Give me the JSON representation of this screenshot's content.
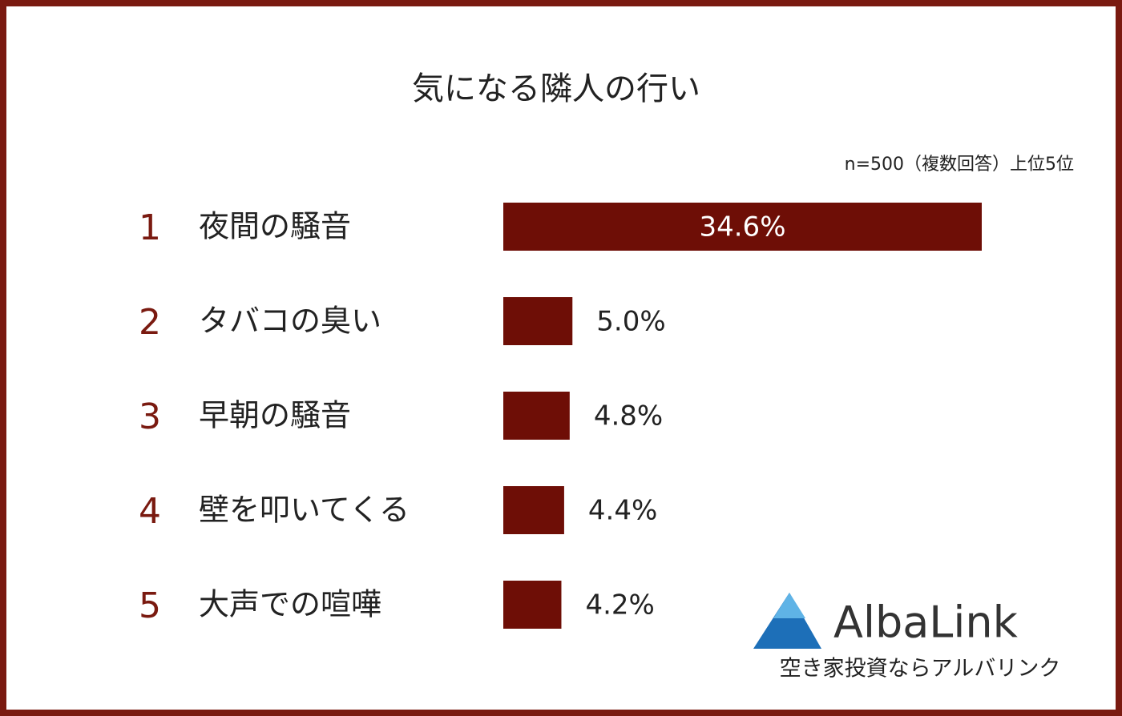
{
  "chart_data": {
    "type": "bar",
    "title": "気になる隣人の行い",
    "subtitle": "n=500（複数回答）上位5位",
    "ranks": [
      1,
      2,
      3,
      4,
      5
    ],
    "categories": [
      "夜間の騒音",
      "タバコの臭い",
      "早朝の騒音",
      "壁を叩いてくる",
      "大声での喧嘩"
    ],
    "values": [
      34.6,
      5.0,
      4.8,
      4.4,
      4.2
    ],
    "value_labels": [
      "34.6%",
      "5.0%",
      "4.8%",
      "4.4%",
      "4.2%"
    ],
    "color": "#6e0e06",
    "rank_color": "#7a1a10"
  },
  "logo": {
    "name": "AlbaLink",
    "tagline": "空き家投資ならアルバリンク"
  }
}
